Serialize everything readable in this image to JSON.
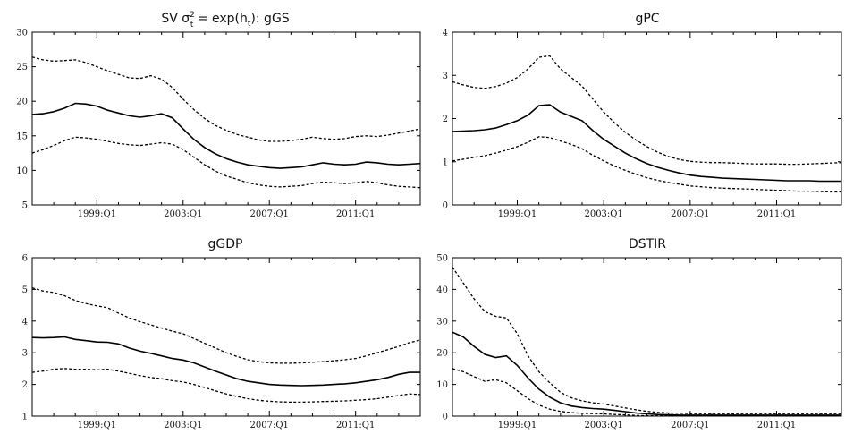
{
  "chart_data": [
    {
      "type": "line",
      "title": "SV σ²t = exp(ht): gGS",
      "title_parts": {
        "prefix": "SV ",
        "sigma": "σ",
        "sup": "2",
        "sub": "t",
        "eq": " = exp(h",
        "sub2": "t",
        "suffix": "): gGS"
      },
      "xlim": [
        1996.0,
        2014.0
      ],
      "ylim": [
        5,
        30
      ],
      "yticks": [
        5,
        10,
        15,
        20,
        25,
        30
      ],
      "xticks": [
        {
          "label": "1999:Q1",
          "x": 1999.0
        },
        {
          "label": "2003:Q1",
          "x": 2003.0
        },
        {
          "label": "2007:Q1",
          "x": 2007.0
        },
        {
          "label": "2011:Q1",
          "x": 2011.0
        }
      ],
      "x": [
        1996.0,
        1996.5,
        1997.0,
        1997.5,
        1998.0,
        1998.5,
        1999.0,
        1999.5,
        2000.0,
        2000.5,
        2001.0,
        2001.5,
        2002.0,
        2002.5,
        2003.0,
        2003.5,
        2004.0,
        2004.5,
        2005.0,
        2005.5,
        2006.0,
        2006.5,
        2007.0,
        2007.5,
        2008.0,
        2008.5,
        2009.0,
        2009.5,
        2010.0,
        2010.5,
        2011.0,
        2011.5,
        2012.0,
        2012.5,
        2013.0,
        2013.5,
        2014.0
      ],
      "series": [
        {
          "style": "dashed",
          "values": [
            26.4,
            26.0,
            25.8,
            25.9,
            26.0,
            25.6,
            25.0,
            24.4,
            23.9,
            23.4,
            23.3,
            23.7,
            23.2,
            22.0,
            20.3,
            18.8,
            17.5,
            16.5,
            15.8,
            15.2,
            14.8,
            14.4,
            14.2,
            14.2,
            14.3,
            14.5,
            14.8,
            14.6,
            14.5,
            14.6,
            14.9,
            15.0,
            14.9,
            15.1,
            15.4,
            15.7,
            16.0
          ]
        },
        {
          "style": "solid",
          "values": [
            18.1,
            18.2,
            18.5,
            19.0,
            19.7,
            19.6,
            19.3,
            18.7,
            18.3,
            17.9,
            17.7,
            17.9,
            18.2,
            17.6,
            16.0,
            14.5,
            13.3,
            12.4,
            11.7,
            11.2,
            10.8,
            10.6,
            10.4,
            10.3,
            10.4,
            10.5,
            10.8,
            11.1,
            10.9,
            10.8,
            10.9,
            11.2,
            11.1,
            10.9,
            10.8,
            10.9,
            11.0
          ]
        },
        {
          "style": "dashed",
          "values": [
            12.5,
            13.0,
            13.6,
            14.3,
            14.8,
            14.7,
            14.5,
            14.2,
            13.9,
            13.7,
            13.6,
            13.8,
            14.0,
            13.8,
            13.0,
            11.9,
            10.8,
            9.9,
            9.2,
            8.7,
            8.2,
            7.9,
            7.7,
            7.6,
            7.7,
            7.8,
            8.1,
            8.3,
            8.2,
            8.1,
            8.2,
            8.4,
            8.2,
            7.9,
            7.7,
            7.6,
            7.5
          ]
        }
      ]
    },
    {
      "type": "line",
      "title": "gPC",
      "xlim": [
        1996.0,
        2014.0
      ],
      "ylim": [
        0,
        4
      ],
      "yticks": [
        0,
        1,
        2,
        3,
        4
      ],
      "xticks": [
        {
          "label": "1999:Q1",
          "x": 1999.0
        },
        {
          "label": "2003:Q1",
          "x": 2003.0
        },
        {
          "label": "2007:Q1",
          "x": 2007.0
        },
        {
          "label": "2011:Q1",
          "x": 2011.0
        }
      ],
      "x": [
        1996.0,
        1996.5,
        1997.0,
        1997.5,
        1998.0,
        1998.5,
        1999.0,
        1999.5,
        2000.0,
        2000.5,
        2001.0,
        2001.5,
        2002.0,
        2002.5,
        2003.0,
        2003.5,
        2004.0,
        2004.5,
        2005.0,
        2005.5,
        2006.0,
        2006.5,
        2007.0,
        2007.5,
        2008.0,
        2008.5,
        2009.0,
        2009.5,
        2010.0,
        2010.5,
        2011.0,
        2011.5,
        2012.0,
        2012.5,
        2013.0,
        2013.5,
        2014.0
      ],
      "series": [
        {
          "style": "dashed",
          "values": [
            2.85,
            2.78,
            2.72,
            2.7,
            2.74,
            2.82,
            2.95,
            3.15,
            3.42,
            3.45,
            3.15,
            2.95,
            2.75,
            2.45,
            2.15,
            1.9,
            1.68,
            1.5,
            1.35,
            1.22,
            1.12,
            1.05,
            1.01,
            0.99,
            0.98,
            0.98,
            0.97,
            0.96,
            0.95,
            0.95,
            0.95,
            0.94,
            0.94,
            0.95,
            0.96,
            0.97,
            0.98
          ]
        },
        {
          "style": "solid",
          "values": [
            1.7,
            1.71,
            1.72,
            1.74,
            1.78,
            1.86,
            1.95,
            2.08,
            2.3,
            2.32,
            2.15,
            2.05,
            1.95,
            1.72,
            1.52,
            1.36,
            1.2,
            1.07,
            0.96,
            0.87,
            0.8,
            0.74,
            0.69,
            0.66,
            0.64,
            0.62,
            0.61,
            0.6,
            0.59,
            0.58,
            0.57,
            0.56,
            0.56,
            0.56,
            0.55,
            0.55,
            0.55
          ]
        },
        {
          "style": "dashed",
          "values": [
            1.02,
            1.06,
            1.1,
            1.14,
            1.2,
            1.27,
            1.35,
            1.45,
            1.58,
            1.56,
            1.48,
            1.4,
            1.3,
            1.15,
            1.02,
            0.9,
            0.8,
            0.71,
            0.63,
            0.57,
            0.52,
            0.48,
            0.44,
            0.42,
            0.4,
            0.39,
            0.38,
            0.37,
            0.36,
            0.35,
            0.34,
            0.33,
            0.32,
            0.32,
            0.31,
            0.3,
            0.3
          ]
        }
      ]
    },
    {
      "type": "line",
      "title": "gGDP",
      "xlim": [
        1996.0,
        2014.0
      ],
      "ylim": [
        1,
        6
      ],
      "yticks": [
        1,
        2,
        3,
        4,
        5,
        6
      ],
      "xticks": [
        {
          "label": "1999:Q1",
          "x": 1999.0
        },
        {
          "label": "2003:Q1",
          "x": 2003.0
        },
        {
          "label": "2007:Q1",
          "x": 2007.0
        },
        {
          "label": "2011:Q1",
          "x": 2011.0
        }
      ],
      "x": [
        1996.0,
        1996.5,
        1997.0,
        1997.5,
        1998.0,
        1998.5,
        1999.0,
        1999.5,
        2000.0,
        2000.5,
        2001.0,
        2001.5,
        2002.0,
        2002.5,
        2003.0,
        2003.5,
        2004.0,
        2004.5,
        2005.0,
        2005.5,
        2006.0,
        2006.5,
        2007.0,
        2007.5,
        2008.0,
        2008.5,
        2009.0,
        2009.5,
        2010.0,
        2010.5,
        2011.0,
        2011.5,
        2012.0,
        2012.5,
        2013.0,
        2013.5,
        2014.0
      ],
      "series": [
        {
          "style": "dashed",
          "values": [
            5.05,
            4.95,
            4.9,
            4.8,
            4.65,
            4.55,
            4.48,
            4.42,
            4.25,
            4.1,
            3.98,
            3.88,
            3.78,
            3.68,
            3.6,
            3.45,
            3.3,
            3.15,
            3.0,
            2.88,
            2.78,
            2.72,
            2.68,
            2.67,
            2.67,
            2.68,
            2.7,
            2.72,
            2.75,
            2.78,
            2.82,
            2.9,
            3.0,
            3.1,
            3.2,
            3.32,
            3.4
          ]
        },
        {
          "style": "solid",
          "values": [
            3.48,
            3.47,
            3.48,
            3.5,
            3.42,
            3.38,
            3.34,
            3.33,
            3.28,
            3.15,
            3.05,
            2.98,
            2.9,
            2.82,
            2.77,
            2.68,
            2.55,
            2.42,
            2.3,
            2.18,
            2.1,
            2.05,
            2.0,
            1.98,
            1.97,
            1.96,
            1.97,
            1.98,
            2.0,
            2.02,
            2.05,
            2.1,
            2.15,
            2.22,
            2.32,
            2.38,
            2.38
          ]
        },
        {
          "style": "dashed",
          "values": [
            2.38,
            2.42,
            2.48,
            2.5,
            2.48,
            2.48,
            2.46,
            2.48,
            2.42,
            2.35,
            2.28,
            2.22,
            2.18,
            2.12,
            2.08,
            2.0,
            1.9,
            1.8,
            1.7,
            1.62,
            1.55,
            1.5,
            1.47,
            1.45,
            1.44,
            1.44,
            1.45,
            1.46,
            1.47,
            1.48,
            1.5,
            1.52,
            1.55,
            1.6,
            1.65,
            1.7,
            1.68
          ]
        }
      ]
    },
    {
      "type": "line",
      "title": "DSTIR",
      "xlim": [
        1996.0,
        2014.0
      ],
      "ylim": [
        0,
        50
      ],
      "yticks": [
        0,
        10,
        20,
        30,
        40,
        50
      ],
      "xticks": [
        {
          "label": "1999:Q1",
          "x": 1999.0
        },
        {
          "label": "2003:Q1",
          "x": 2003.0
        },
        {
          "label": "2007:Q1",
          "x": 2007.0
        },
        {
          "label": "2011:Q1",
          "x": 2011.0
        }
      ],
      "x": [
        1996.0,
        1996.5,
        1997.0,
        1997.5,
        1998.0,
        1998.5,
        1999.0,
        1999.5,
        2000.0,
        2000.5,
        2001.0,
        2001.5,
        2002.0,
        2002.5,
        2003.0,
        2003.5,
        2004.0,
        2004.5,
        2005.0,
        2005.5,
        2006.0,
        2006.5,
        2007.0,
        2007.5,
        2008.0,
        2008.5,
        2009.0,
        2009.5,
        2010.0,
        2010.5,
        2011.0,
        2011.5,
        2012.0,
        2012.5,
        2013.0,
        2013.5,
        2014.0
      ],
      "series": [
        {
          "style": "dashed",
          "values": [
            47.0,
            42.0,
            37.0,
            33.0,
            31.5,
            31.0,
            26.0,
            19.0,
            14.0,
            10.5,
            7.5,
            5.8,
            4.8,
            4.2,
            3.8,
            3.2,
            2.6,
            2.0,
            1.5,
            1.2,
            1.0,
            0.9,
            0.8,
            0.8,
            0.8,
            0.8,
            0.8,
            0.8,
            0.8,
            0.8,
            0.8,
            0.8,
            0.8,
            0.8,
            0.8,
            0.8,
            0.8
          ]
        },
        {
          "style": "solid",
          "values": [
            26.5,
            25.0,
            22.0,
            19.5,
            18.5,
            19.0,
            16.0,
            12.0,
            8.5,
            6.0,
            4.2,
            3.2,
            2.7,
            2.4,
            2.2,
            1.8,
            1.4,
            1.0,
            0.7,
            0.5,
            0.4,
            0.3,
            0.3,
            0.3,
            0.3,
            0.3,
            0.3,
            0.3,
            0.3,
            0.3,
            0.3,
            0.3,
            0.3,
            0.3,
            0.3,
            0.3,
            0.3
          ]
        },
        {
          "style": "dashed",
          "values": [
            15.0,
            14.0,
            12.5,
            11.0,
            11.5,
            10.5,
            8.0,
            5.5,
            3.5,
            2.2,
            1.5,
            1.1,
            0.9,
            0.8,
            0.7,
            0.5,
            0.4,
            0.2,
            0.1,
            0.1,
            0.1,
            0.1,
            0.1,
            0.1,
            0.1,
            0.1,
            0.1,
            0.1,
            0.1,
            0.1,
            0.1,
            0.1,
            0.1,
            0.1,
            0.1,
            0.1,
            0.1
          ]
        }
      ]
    }
  ]
}
